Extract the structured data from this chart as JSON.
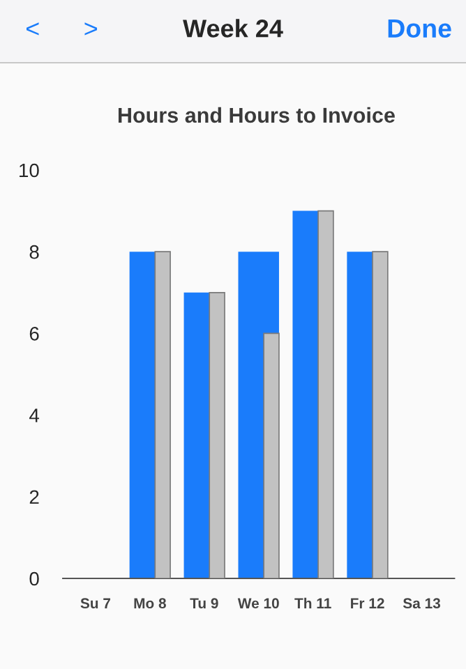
{
  "chart_data": {
    "type": "bar",
    "title": "Week 24",
    "subtitle": "Hours and Hours to Invoice",
    "annotations": [
      "<",
      ">",
      "Done"
    ],
    "categories": [
      "Su 7",
      "Mo 8",
      "Tu 9",
      "We 10",
      "Th 11",
      "Fr 12",
      "Sa 13"
    ],
    "series": [
      {
        "color": "#1a7cfb",
        "values": [
          null,
          8,
          7,
          8,
          9,
          8,
          null
        ]
      },
      {
        "color": "#c2c2c2",
        "values": [
          null,
          8,
          7,
          6,
          9,
          8,
          null
        ]
      }
    ],
    "ylim": [
      0,
      10
    ],
    "yticks": [
      0,
      2,
      4,
      6,
      8,
      10
    ],
    "grid": false,
    "legend": false
  }
}
